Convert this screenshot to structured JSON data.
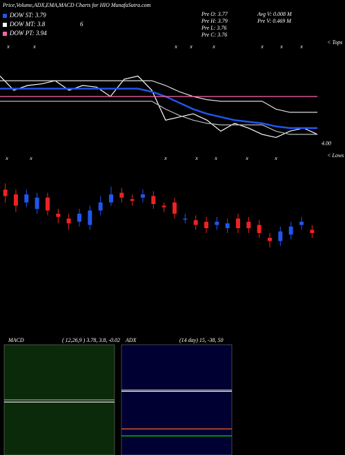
{
  "header": {
    "title": "Price,Volume,ADX,EMA,MACD Charts for HIO MunafaSutra.com"
  },
  "legend": {
    "dow_st": "DOW ST: 3.79",
    "dow_mt": "DOW MT: 3.8",
    "dow_mt_extra": "6",
    "dow_pt": "DOW PT: 3.94",
    "pre_o": "Pre  O: 3.77",
    "pre_h": "Pre  H: 3.79",
    "pre_l": "Pre  L: 3.76",
    "pre_c": "Pre  C: 3.76",
    "avg_v": "Avg  V: 0.008  M",
    "pre_v": "Pre  V: 0.469 M"
  },
  "tops": {
    "label": "< Tops",
    "markers": [
      "x",
      "x",
      "x",
      "x",
      "x",
      "x",
      "x",
      "x"
    ]
  },
  "lows": {
    "label": "< Lows",
    "markers": [
      "x",
      "x",
      "x",
      "x",
      "x",
      "x",
      "x"
    ]
  },
  "chart_data": [
    {
      "type": "line",
      "ylim": [
        3.95,
        4.65
      ],
      "yticks": [
        {
          "value": 4.0,
          "label": "4.00"
        }
      ],
      "series": [
        {
          "color": "#ffffff",
          "values": [
            4.43,
            4.34,
            4.37,
            4.38,
            4.4,
            4.34,
            4.37,
            4.36,
            4.3,
            4.41,
            4.43,
            4.34,
            4.15,
            4.17,
            4.19,
            4.15,
            4.08,
            4.13,
            4.1,
            4.06,
            4.04,
            4.08,
            4.1,
            4.06
          ]
        },
        {
          "color": "#2255ee",
          "values": [
            4.35,
            4.35,
            4.35,
            4.35,
            4.35,
            4.35,
            4.35,
            4.35,
            4.35,
            4.35,
            4.35,
            4.33,
            4.3,
            4.26,
            4.22,
            4.19,
            4.17,
            4.15,
            4.14,
            4.13,
            4.11,
            4.1,
            4.1,
            4.1
          ]
        },
        {
          "color": "#dddddd",
          "values": [
            4.4,
            4.4,
            4.4,
            4.4,
            4.4,
            4.4,
            4.4,
            4.4,
            4.4,
            4.4,
            4.4,
            4.4,
            4.37,
            4.33,
            4.3,
            4.28,
            4.27,
            4.27,
            4.27,
            4.27,
            4.22,
            4.2,
            4.2,
            4.2
          ]
        },
        {
          "color": "#bbbbbb",
          "values": [
            4.27,
            4.27,
            4.27,
            4.27,
            4.27,
            4.27,
            4.27,
            4.27,
            4.27,
            4.27,
            4.27,
            4.27,
            4.22,
            4.18,
            4.15,
            4.13,
            4.12,
            4.12,
            4.12,
            4.12,
            4.08,
            4.06,
            4.06,
            4.06
          ]
        },
        {
          "color": "#ff66aa",
          "values": [
            4.3,
            4.3,
            4.3,
            4.3,
            4.3,
            4.3,
            4.3,
            4.3,
            4.3,
            4.3,
            4.3,
            4.3,
            4.3,
            4.3,
            4.3,
            4.3,
            4.3,
            4.3,
            4.3,
            4.3,
            4.3,
            4.3,
            4.3,
            4.3
          ]
        }
      ]
    },
    {
      "type": "candlestick",
      "ylim": [
        3.85,
        4.45
      ],
      "up_color": "#2255ee",
      "down_color": "#ee2222",
      "open": [
        4.3,
        4.27,
        4.22,
        4.18,
        4.25,
        4.15,
        4.12,
        4.1,
        4.08,
        4.17,
        4.22,
        4.28,
        4.24,
        4.25,
        4.26,
        4.2,
        4.22,
        4.12,
        4.11,
        4.1,
        4.08,
        4.06,
        4.12,
        4.1,
        4.08,
        4.0,
        3.98,
        4.02,
        4.08,
        4.05
      ],
      "high": [
        4.34,
        4.3,
        4.3,
        4.28,
        4.28,
        4.18,
        4.15,
        4.18,
        4.2,
        4.26,
        4.32,
        4.31,
        4.27,
        4.3,
        4.29,
        4.22,
        4.25,
        4.15,
        4.14,
        4.13,
        4.13,
        4.12,
        4.15,
        4.13,
        4.11,
        4.03,
        4.07,
        4.1,
        4.13,
        4.08
      ],
      "low": [
        4.22,
        4.16,
        4.19,
        4.15,
        4.14,
        4.09,
        4.05,
        4.07,
        4.05,
        4.14,
        4.2,
        4.22,
        4.2,
        4.22,
        4.18,
        4.16,
        4.12,
        4.09,
        4.05,
        4.03,
        4.05,
        4.03,
        4.03,
        4.03,
        4.0,
        3.94,
        3.95,
        3.99,
        4.05,
        4.0
      ],
      "close": [
        4.26,
        4.2,
        4.27,
        4.25,
        4.17,
        4.13,
        4.09,
        4.15,
        4.17,
        4.22,
        4.27,
        4.25,
        4.23,
        4.27,
        4.21,
        4.19,
        4.15,
        4.12,
        4.08,
        4.06,
        4.1,
        4.09,
        4.06,
        4.06,
        4.03,
        3.98,
        4.04,
        4.07,
        4.1,
        4.03
      ]
    },
    {
      "type": "line",
      "title": "MACD",
      "subtitle": "( 12,26,9 ) 3.78, 3.8, -0.02",
      "ylim": [
        -0.5,
        0.5
      ],
      "background": "#0a2a0a",
      "series": [
        {
          "color": "#ffffff",
          "values": [
            -0.02,
            -0.02,
            -0.02,
            -0.02,
            -0.02,
            -0.02
          ]
        },
        {
          "color": "#999999",
          "values": [
            0.0,
            0.0,
            0.0,
            0.0,
            0.0,
            0.0
          ]
        }
      ]
    },
    {
      "type": "line",
      "title": "ADX",
      "subtitle": "(14 day) 15, -38, 50",
      "ylim": [
        0,
        86.5
      ],
      "background": "#000033",
      "series": [
        {
          "color": "#ffffff",
          "values": [
            50,
            50,
            50,
            50,
            50,
            50
          ]
        },
        {
          "color": "#aaaaaa",
          "values": [
            51,
            51,
            51,
            51,
            51,
            51
          ]
        },
        {
          "color": "#ff6622",
          "values": [
            20.5,
            20.5,
            20.5,
            20.5,
            20.5,
            20.5
          ]
        },
        {
          "color": "#00ee00",
          "values": [
            15,
            15,
            15,
            15,
            15,
            15
          ]
        }
      ]
    }
  ]
}
